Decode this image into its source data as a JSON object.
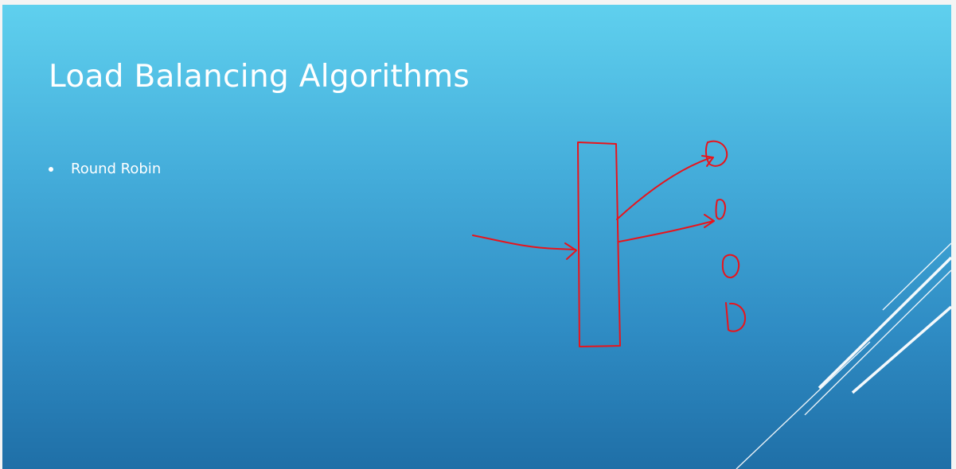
{
  "slide": {
    "title": "Load Balancing Algorithms",
    "bullets": [
      "Round Robin"
    ]
  },
  "annotation": {
    "ink_color": "#e8141c",
    "shapes": [
      "load-balancer-box",
      "incoming-request-arrow",
      "arrow-to-server-1",
      "arrow-to-server-2",
      "server-1",
      "server-2",
      "server-3",
      "server-4"
    ]
  },
  "theme": {
    "background_top": "#5fd0ee",
    "background_bottom": "#1f6fa7",
    "text_color": "#ffffff"
  }
}
